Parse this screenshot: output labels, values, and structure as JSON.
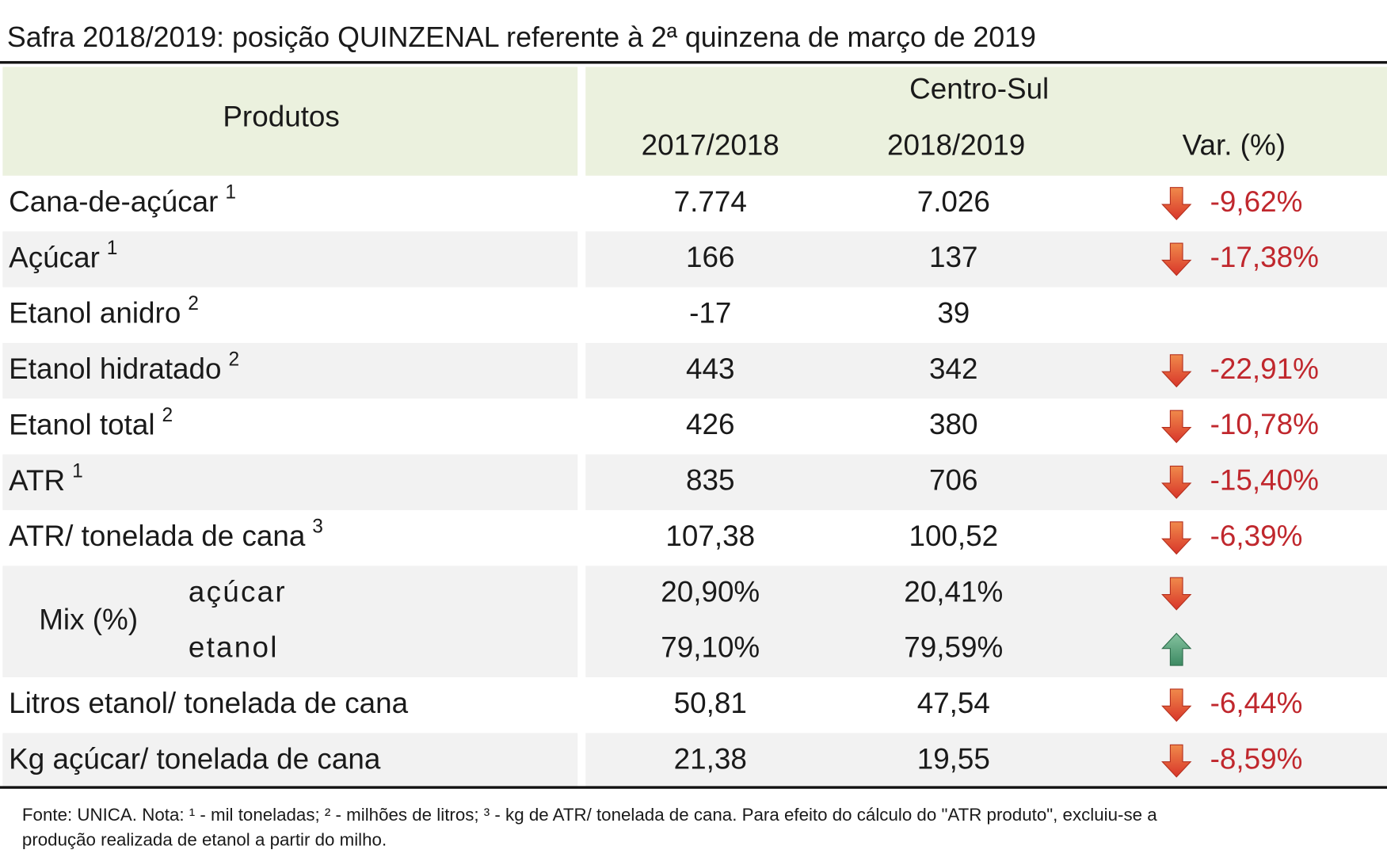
{
  "title": "Safra 2018/2019: posição QUINZENAL referente à 2ª quinzena de março de 2019",
  "table": {
    "header": {
      "products": "Produtos",
      "region": "Centro-Sul",
      "columns": [
        "2017/2018",
        "2018/2019",
        "Var. (%)"
      ]
    },
    "rows": [
      {
        "product": "Cana-de-açúcar",
        "note": "1",
        "values": [
          "7.774",
          "7.026",
          "-9,62%"
        ],
        "trend": "down"
      },
      {
        "product": "Açúcar",
        "note": "1",
        "values": [
          "166",
          "137",
          "-17,38%"
        ],
        "trend": "down"
      },
      {
        "product": "Etanol anidro",
        "note": "2",
        "values": [
          "-17",
          "39"
        ]
      },
      {
        "product": "Etanol hidratado",
        "note": "2",
        "values": [
          "443",
          "342",
          "-22,91%"
        ],
        "trend": "down"
      },
      {
        "product": "Etanol total",
        "note": "2",
        "values": [
          "426",
          "380",
          "-10,78%"
        ],
        "trend": "down"
      },
      {
        "product": "ATR",
        "note": "1",
        "values": [
          "835",
          "706",
          "-15,40%"
        ],
        "trend": "down"
      },
      {
        "product": "ATR/ tonelada de cana",
        "note": "3",
        "values": [
          "107,38",
          "100,52",
          "-6,39%"
        ],
        "trend": "down"
      },
      {
        "group": "Mix (%)",
        "items": [
          {
            "product": "açúcar",
            "values": [
              "20,90%",
              "20,41%"
            ],
            "trend": "down"
          },
          {
            "product": "etanol",
            "values": [
              "79,10%",
              "79,59%"
            ],
            "trend": "up"
          }
        ]
      },
      {
        "product": "Litros etanol/ tonelada de cana",
        "values": [
          "50,81",
          "47,54",
          "-6,44%"
        ],
        "trend": "down"
      },
      {
        "product": "Kg açúcar/ tonelada de cana",
        "values": [
          "21,38",
          "19,55",
          "-8,59%"
        ],
        "trend": "down"
      }
    ]
  },
  "footnote": [
    "Fonte: UNICA. Nota: ¹ - mil toneladas; ² - milhões de litros; ³ - kg de ATR/ tonelada de cana. Para efeito do cálculo do \"ATR produto\", excluiu-se a",
    "produção realizada de etanol a partir do milho."
  ]
}
